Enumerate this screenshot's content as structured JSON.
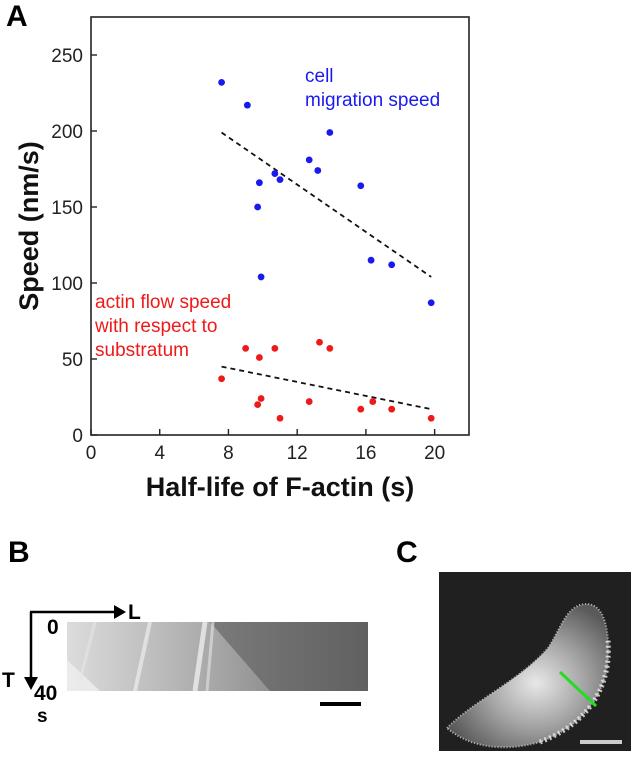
{
  "panels": {
    "a": "A",
    "b": "B",
    "c": "C"
  },
  "chart_data": {
    "type": "scatter",
    "xlabel": "Half-life of F-actin (s)",
    "ylabel": "Speed (nm/s)",
    "xlim": [
      0,
      22
    ],
    "ylim": [
      0,
      275
    ],
    "xticks": [
      0,
      4,
      8,
      12,
      16,
      20
    ],
    "yticks": [
      0,
      50,
      100,
      150,
      200,
      250
    ],
    "grid": false,
    "series": [
      {
        "name": "cell migration speed",
        "color": "#1a1aee",
        "points": [
          [
            7.6,
            232
          ],
          [
            9.1,
            217
          ],
          [
            9.7,
            150
          ],
          [
            9.8,
            166
          ],
          [
            9.9,
            104
          ],
          [
            10.7,
            172
          ],
          [
            11.0,
            168
          ],
          [
            12.7,
            181
          ],
          [
            13.2,
            174
          ],
          [
            13.9,
            199
          ],
          [
            15.7,
            164
          ],
          [
            16.3,
            115
          ],
          [
            17.5,
            112
          ],
          [
            19.8,
            87
          ]
        ],
        "trend": [
          [
            7.6,
            199
          ],
          [
            19.8,
            104
          ]
        ]
      },
      {
        "name": "actin flow speed with respect to substratum",
        "color": "#ee1a1a",
        "points": [
          [
            7.6,
            37
          ],
          [
            9.0,
            57
          ],
          [
            9.7,
            20
          ],
          [
            9.8,
            51
          ],
          [
            9.9,
            24
          ],
          [
            10.7,
            57
          ],
          [
            11.0,
            11
          ],
          [
            12.7,
            22
          ],
          [
            13.3,
            61
          ],
          [
            13.9,
            57
          ],
          [
            15.7,
            17
          ],
          [
            16.4,
            22
          ],
          [
            17.5,
            17
          ],
          [
            19.8,
            11
          ]
        ],
        "trend": [
          [
            7.6,
            45
          ],
          [
            19.8,
            17
          ]
        ]
      }
    ],
    "annotations": [
      {
        "series": 0,
        "lines": [
          "cell",
          "migration speed"
        ]
      },
      {
        "series": 1,
        "lines": [
          "actin flow speed",
          "with respect to",
          "substratum"
        ]
      }
    ]
  },
  "panel_b": {
    "x_axis_label": "L",
    "y_axis_label": "T",
    "t_start": "0",
    "t_end": "40",
    "t_unit": "s"
  },
  "panel_c": {
    "line_marker_color": "#22dd22",
    "scale_bar_color": "#cccccc"
  }
}
